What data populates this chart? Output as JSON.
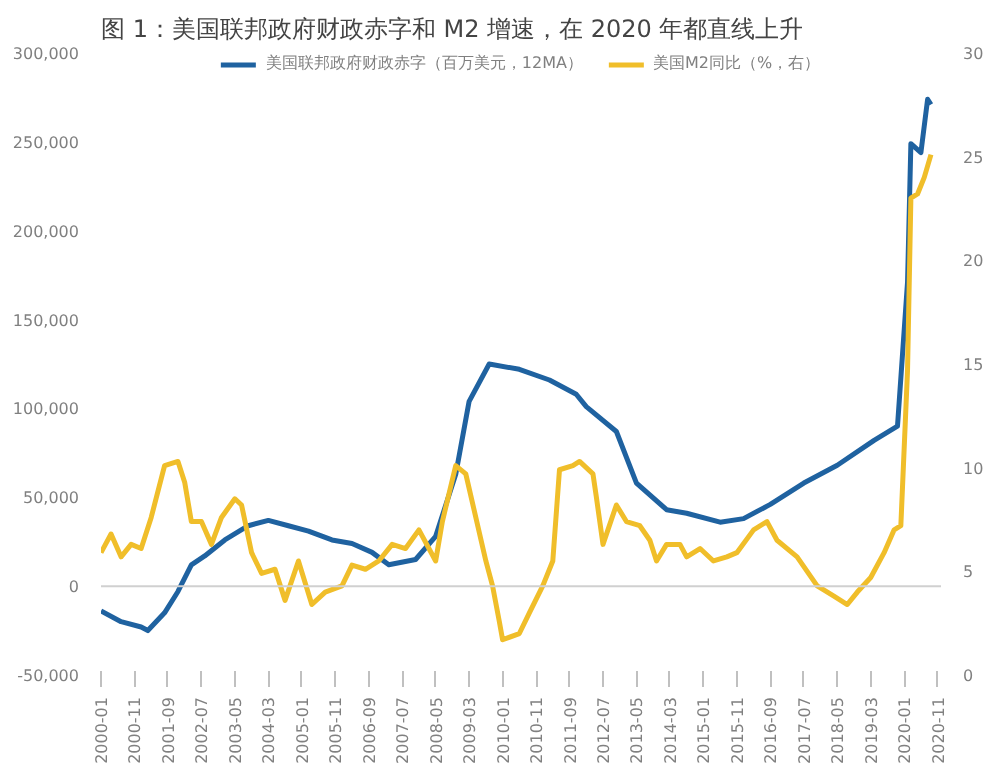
{
  "chart_data": {
    "type": "line",
    "title": "图 1：美国联邦政府财政赤字和 M2 增速，在 2020 年都直线上升",
    "series": [
      {
        "name": "美国联邦政府财政赤字（百万美元，12MA）",
        "color": "#1f62a0",
        "x": [
          "2000-01",
          "2000-07",
          "2001-01",
          "2001-03",
          "2001-08",
          "2001-12",
          "2002-04",
          "2002-08",
          "2003-02",
          "2003-09",
          "2004-03",
          "2004-09",
          "2005-03",
          "2005-10",
          "2006-04",
          "2006-10",
          "2007-03",
          "2007-11",
          "2008-05",
          "2008-11",
          "2009-03",
          "2009-09",
          "2010-06",
          "2011-03",
          "2011-11",
          "2012-02",
          "2012-11",
          "2013-05",
          "2014-02",
          "2014-08",
          "2015-06",
          "2016-01",
          "2016-09",
          "2017-07",
          "2018-05",
          "2019-04",
          "2019-11",
          "2020-02",
          "2020-03",
          "2020-06",
          "2020-08",
          "2020-09"
        ],
        "values": [
          -14000,
          -20000,
          -23000,
          -25000,
          -15000,
          -3000,
          12000,
          17000,
          26000,
          34000,
          37000,
          34000,
          31000,
          26000,
          24000,
          19000,
          12000,
          15000,
          28000,
          63000,
          104000,
          125000,
          122000,
          116000,
          108000,
          101000,
          87000,
          58000,
          43000,
          41000,
          36000,
          38000,
          46000,
          58000,
          68000,
          82000,
          90000,
          171000,
          249000,
          244000,
          274000,
          271000
        ]
      },
      {
        "name": "美国M2同比（%，右）",
        "color": "#f0be2a",
        "axis": "y2",
        "x": [
          "2000-01",
          "2000-04",
          "2000-07",
          "2000-10",
          "2001-01",
          "2001-04",
          "2001-08",
          "2001-12",
          "2002-02",
          "2002-04",
          "2002-07",
          "2002-10",
          "2003-01",
          "2003-05",
          "2003-07",
          "2003-10",
          "2004-01",
          "2004-05",
          "2004-08",
          "2004-12",
          "2005-04",
          "2005-08",
          "2006-01",
          "2006-04",
          "2006-08",
          "2006-12",
          "2007-04",
          "2007-08",
          "2007-12",
          "2008-05",
          "2008-07",
          "2008-11",
          "2009-02",
          "2009-08",
          "2009-10",
          "2009-12",
          "2010-01",
          "2010-06",
          "2010-09",
          "2011-01",
          "2011-04",
          "2011-06",
          "2011-10",
          "2011-12",
          "2012-04",
          "2012-05",
          "2012-07",
          "2012-11",
          "2013-02",
          "2013-06",
          "2013-09",
          "2013-11",
          "2014-02",
          "2014-06",
          "2014-08",
          "2014-12",
          "2015-04",
          "2015-08",
          "2015-11",
          "2016-04",
          "2016-08",
          "2016-11",
          "2017-05",
          "2017-11",
          "2018-04",
          "2018-08",
          "2018-11",
          "2019-03",
          "2019-07",
          "2019-10",
          "2019-12",
          "2020-02",
          "2020-03",
          "2020-05",
          "2020-07",
          "2020-09"
        ],
        "values": [
          5.9,
          6.8,
          5.7,
          6.3,
          6.1,
          7.6,
          10.1,
          10.3,
          9.3,
          7.4,
          7.4,
          6.3,
          7.6,
          8.5,
          8.2,
          5.9,
          4.9,
          5.1,
          3.6,
          5.5,
          3.4,
          4.0,
          4.3,
          5.3,
          5.1,
          5.5,
          6.3,
          6.1,
          7.0,
          5.5,
          7.4,
          10.1,
          9.7,
          5.5,
          4.3,
          2.6,
          1.7,
          2.0,
          3.0,
          4.3,
          5.5,
          9.9,
          10.1,
          10.3,
          9.7,
          8.6,
          6.3,
          8.2,
          7.4,
          7.2,
          6.5,
          5.5,
          6.3,
          6.3,
          5.7,
          6.1,
          5.5,
          5.7,
          5.9,
          7.0,
          7.4,
          6.5,
          5.7,
          4.3,
          3.8,
          3.4,
          4.0,
          4.7,
          5.9,
          7.0,
          7.2,
          14.7,
          23.0,
          23.2,
          24.0,
          25.1
        ]
      }
    ],
    "xlim": [
      "2000-01",
      "2020-12"
    ],
    "xticks": [
      "2000-01",
      "2000-11",
      "2001-09",
      "2002-07",
      "2003-05",
      "2004-03",
      "2005-01",
      "2005-11",
      "2006-09",
      "2007-07",
      "2008-05",
      "2009-03",
      "2010-01",
      "2010-11",
      "2011-09",
      "2012-07",
      "2013-05",
      "2014-03",
      "2015-01",
      "2015-11",
      "2016-09",
      "2017-07",
      "2018-05",
      "2019-03",
      "2020-01",
      "2020-11"
    ],
    "ylim": [
      -50000,
      300000
    ],
    "yticks": [
      {
        "value": -50000,
        "label": "-50,000"
      },
      0,
      {
        "value": 50000,
        "label": "50,000"
      },
      {
        "value": 100000,
        "label": "100,000"
      },
      {
        "value": 150000,
        "label": "150,000"
      },
      {
        "value": 200000,
        "label": "200,000"
      },
      {
        "value": 250000,
        "label": "250,000"
      },
      {
        "value": 300000,
        "label": "300,000"
      }
    ],
    "y2lim": [
      0,
      30
    ],
    "y2ticks": [
      0,
      5,
      10,
      15,
      20,
      25,
      30
    ],
    "ref_lines": [
      {
        "axis": "y",
        "value": 0,
        "color": "#d0d0d0"
      }
    ],
    "legend": "top",
    "grid": false,
    "line_style": "solid"
  }
}
